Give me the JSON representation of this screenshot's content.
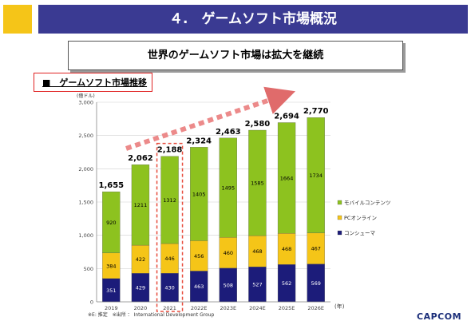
{
  "header": {
    "title": "４.　ゲームソフト市場概況"
  },
  "subtitle": "世界のゲームソフト市場は拡大を継続",
  "section_label": "■　ゲームソフト市場推移",
  "footnote": "※E: 推定　※出所 ： International Development Group",
  "logo": "CAPCOM",
  "colors": {
    "accent": "#f5c518",
    "title_bar": "#3a3a92",
    "console": "#1c1c7a",
    "pc_online": "#f5c518",
    "mobile": "#8dc21f",
    "highlight": "#e74c3c"
  },
  "chart_data": {
    "type": "bar",
    "stacked": true,
    "unit_label": "(億ドル)",
    "x_unit": "(年)",
    "categories": [
      "2019",
      "2020",
      "2021",
      "2022E",
      "2023E",
      "2024E",
      "2025E",
      "2026E"
    ],
    "series": [
      {
        "name": "コンシューマ",
        "values": [
          351,
          429,
          430,
          463,
          508,
          527,
          562,
          569
        ]
      },
      {
        "name": "PCオンライン",
        "values": [
          384,
          422,
          446,
          456,
          460,
          468,
          468,
          467
        ]
      },
      {
        "name": "モバイルコンテンツ",
        "values": [
          920,
          1211,
          1312,
          1405,
          1495,
          1585,
          1664,
          1734
        ]
      }
    ],
    "totals": [
      "1,655",
      "2,062",
      "2,188",
      "2,324",
      "2,463",
      "2,580",
      "2,694",
      "2,770"
    ],
    "ylim": [
      0,
      3000
    ],
    "yticks": [
      "0",
      "500",
      "1,000",
      "1,500",
      "2,000",
      "2,500",
      "3,000"
    ],
    "highlighted_category": "2021",
    "legend_position": "right"
  }
}
